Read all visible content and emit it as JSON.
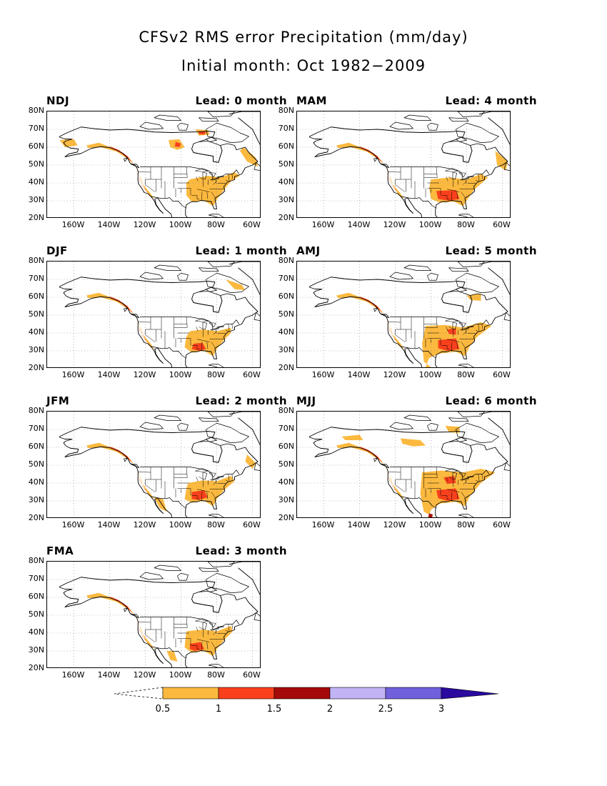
{
  "title": "CFSv2 RMS error Precipitation (mm/day)",
  "subtitle": "Initial month: Oct 1982−2009",
  "lat_labels": [
    "80N",
    "70N",
    "60N",
    "50N",
    "40N",
    "30N",
    "20N"
  ],
  "lon_labels": [
    "160W",
    "140W",
    "120W",
    "100W",
    "80W",
    "60W"
  ],
  "panels": [
    {
      "season": "NDJ",
      "lead": "Lead: 0 month"
    },
    {
      "season": "DJF",
      "lead": "Lead: 1 month"
    },
    {
      "season": "JFM",
      "lead": "Lead: 2 month"
    },
    {
      "season": "FMA",
      "lead": "Lead: 3 month"
    },
    {
      "season": "MAM",
      "lead": "Lead: 4 month"
    },
    {
      "season": "AMJ",
      "lead": "Lead: 5 month"
    },
    {
      "season": "MJJ",
      "lead": "Lead: 6 month"
    }
  ],
  "colorbar": {
    "labels": [
      "0.5",
      "1",
      "1.5",
      "2",
      "2.5",
      "3"
    ],
    "colors": [
      "#fbb93f",
      "#f9401c",
      "#a50a0a",
      "#c2b3f5",
      "#7160dc",
      "#2a0a9f"
    ]
  }
}
